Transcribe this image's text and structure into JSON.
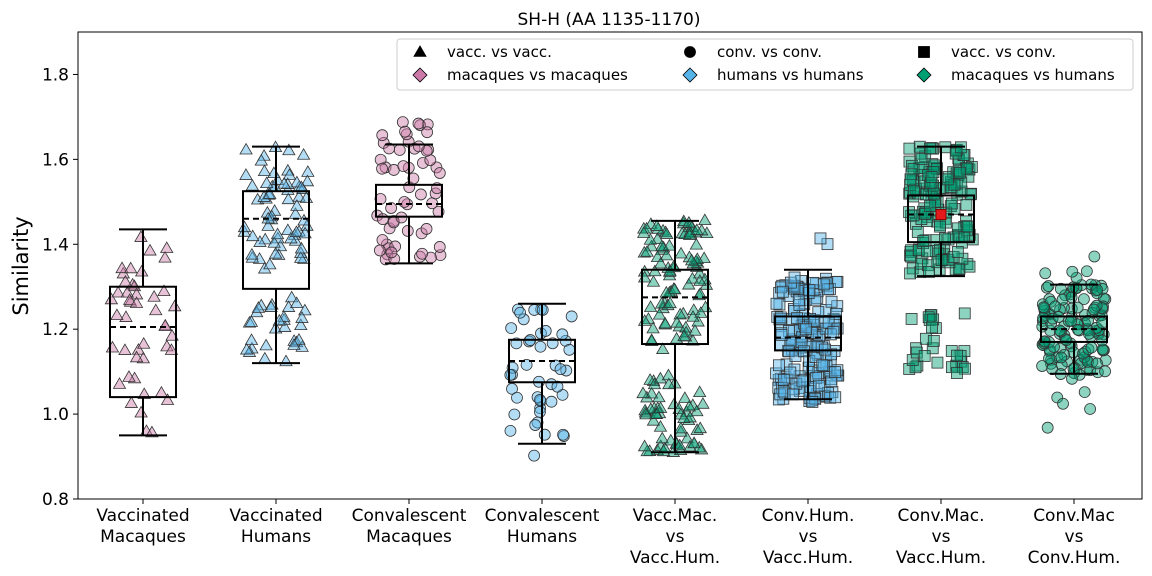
{
  "chart_data": {
    "type": "box",
    "title": "SH-H (AA 1135-1170)",
    "xlabel": "",
    "ylabel": "Similarity",
    "ylim": [
      0.8,
      1.9
    ],
    "yticks": [
      0.8,
      1.0,
      1.2,
      1.4,
      1.6,
      1.8
    ],
    "categories": [
      [
        "Vaccinated",
        "Macaques"
      ],
      [
        "Vaccinated",
        "Humans"
      ],
      [
        "Convalescent",
        "Macaques"
      ],
      [
        "Convalescent",
        "Humans"
      ],
      [
        "Vacc.Mac.",
        "vs",
        "Vacc.Hum."
      ],
      [
        "Conv.Hum.",
        "vs",
        "Vacc.Hum."
      ],
      [
        "Conv.Mac.",
        "vs",
        "Vacc.Hum."
      ],
      [
        "Conv.Mac",
        "vs",
        "Conv.Hum."
      ]
    ],
    "boxes": [
      {
        "whisker_low": 0.95,
        "q1": 1.04,
        "median": 1.205,
        "q3": 1.3,
        "whisker_high": 1.435,
        "marker": "triangle",
        "color": "#cc79a7",
        "clusters": [
          {
            "n": 45,
            "min": 0.95,
            "max": 1.43
          }
        ]
      },
      {
        "whisker_low": 1.12,
        "q1": 1.295,
        "median": 1.46,
        "q3": 1.525,
        "whisker_high": 1.63,
        "marker": "triangle",
        "color": "#56b4e9",
        "clusters": [
          {
            "n": 70,
            "min": 1.34,
            "max": 1.63
          },
          {
            "n": 30,
            "min": 1.12,
            "max": 1.29
          }
        ]
      },
      {
        "whisker_low": 1.355,
        "q1": 1.465,
        "median": 1.495,
        "q3": 1.54,
        "whisker_high": 1.635,
        "marker": "circle",
        "color": "#cc79a7",
        "clusters": [
          {
            "n": 60,
            "min": 1.36,
            "max": 1.69
          }
        ]
      },
      {
        "whisker_low": 0.93,
        "q1": 1.075,
        "median": 1.125,
        "q3": 1.175,
        "whisker_high": 1.26,
        "marker": "circle",
        "color": "#56b4e9",
        "clusters": [
          {
            "n": 45,
            "min": 0.9,
            "max": 1.26
          }
        ]
      },
      {
        "whisker_low": 0.91,
        "q1": 1.165,
        "median": 1.275,
        "q3": 1.34,
        "whisker_high": 1.455,
        "marker": "triangle",
        "color": "#009e73",
        "clusters": [
          {
            "n": 100,
            "min": 1.15,
            "max": 1.46
          },
          {
            "n": 60,
            "min": 0.91,
            "max": 1.1
          }
        ]
      },
      {
        "whisker_low": 1.035,
        "q1": 1.15,
        "median": 1.18,
        "q3": 1.23,
        "whisker_high": 1.34,
        "marker": "square",
        "color": "#56b4e9",
        "clusters": [
          {
            "n": 170,
            "min": 1.03,
            "max": 1.32
          },
          {
            "n": 12,
            "min": 0.96,
            "max": 1.44
          }
        ]
      },
      {
        "whisker_low": 1.325,
        "q1": 1.405,
        "median": 1.47,
        "q3": 1.515,
        "whisker_high": 1.63,
        "marker": "square",
        "color": "#009e73",
        "clusters": [
          {
            "n": 160,
            "min": 1.33,
            "max": 1.63
          },
          {
            "n": 30,
            "min": 1.09,
            "max": 1.24
          }
        ],
        "highlight": {
          "value": 1.47,
          "color": "#e31a1c"
        }
      },
      {
        "whisker_low": 1.095,
        "q1": 1.17,
        "median": 1.2,
        "q3": 1.23,
        "whisker_high": 1.305,
        "marker": "circle",
        "color": "#009e73",
        "clusters": [
          {
            "n": 120,
            "min": 1.09,
            "max": 1.31
          },
          {
            "n": 20,
            "min": 0.96,
            "max": 1.41
          }
        ]
      }
    ],
    "legend": {
      "placement": "top-right",
      "entries": [
        {
          "label": "vacc. vs vacc.",
          "marker": "triangle",
          "color": "#000000"
        },
        {
          "label": "conv. vs conv.",
          "marker": "circle",
          "color": "#000000"
        },
        {
          "label": "vacc. vs conv.",
          "marker": "square",
          "color": "#000000"
        },
        {
          "label": "macaques vs macaques",
          "marker": "diamond",
          "color": "#cc79a7"
        },
        {
          "label": "humans vs humans",
          "marker": "diamond",
          "color": "#56b4e9"
        },
        {
          "label": "macaques vs humans",
          "marker": "diamond",
          "color": "#009e73"
        }
      ]
    }
  }
}
